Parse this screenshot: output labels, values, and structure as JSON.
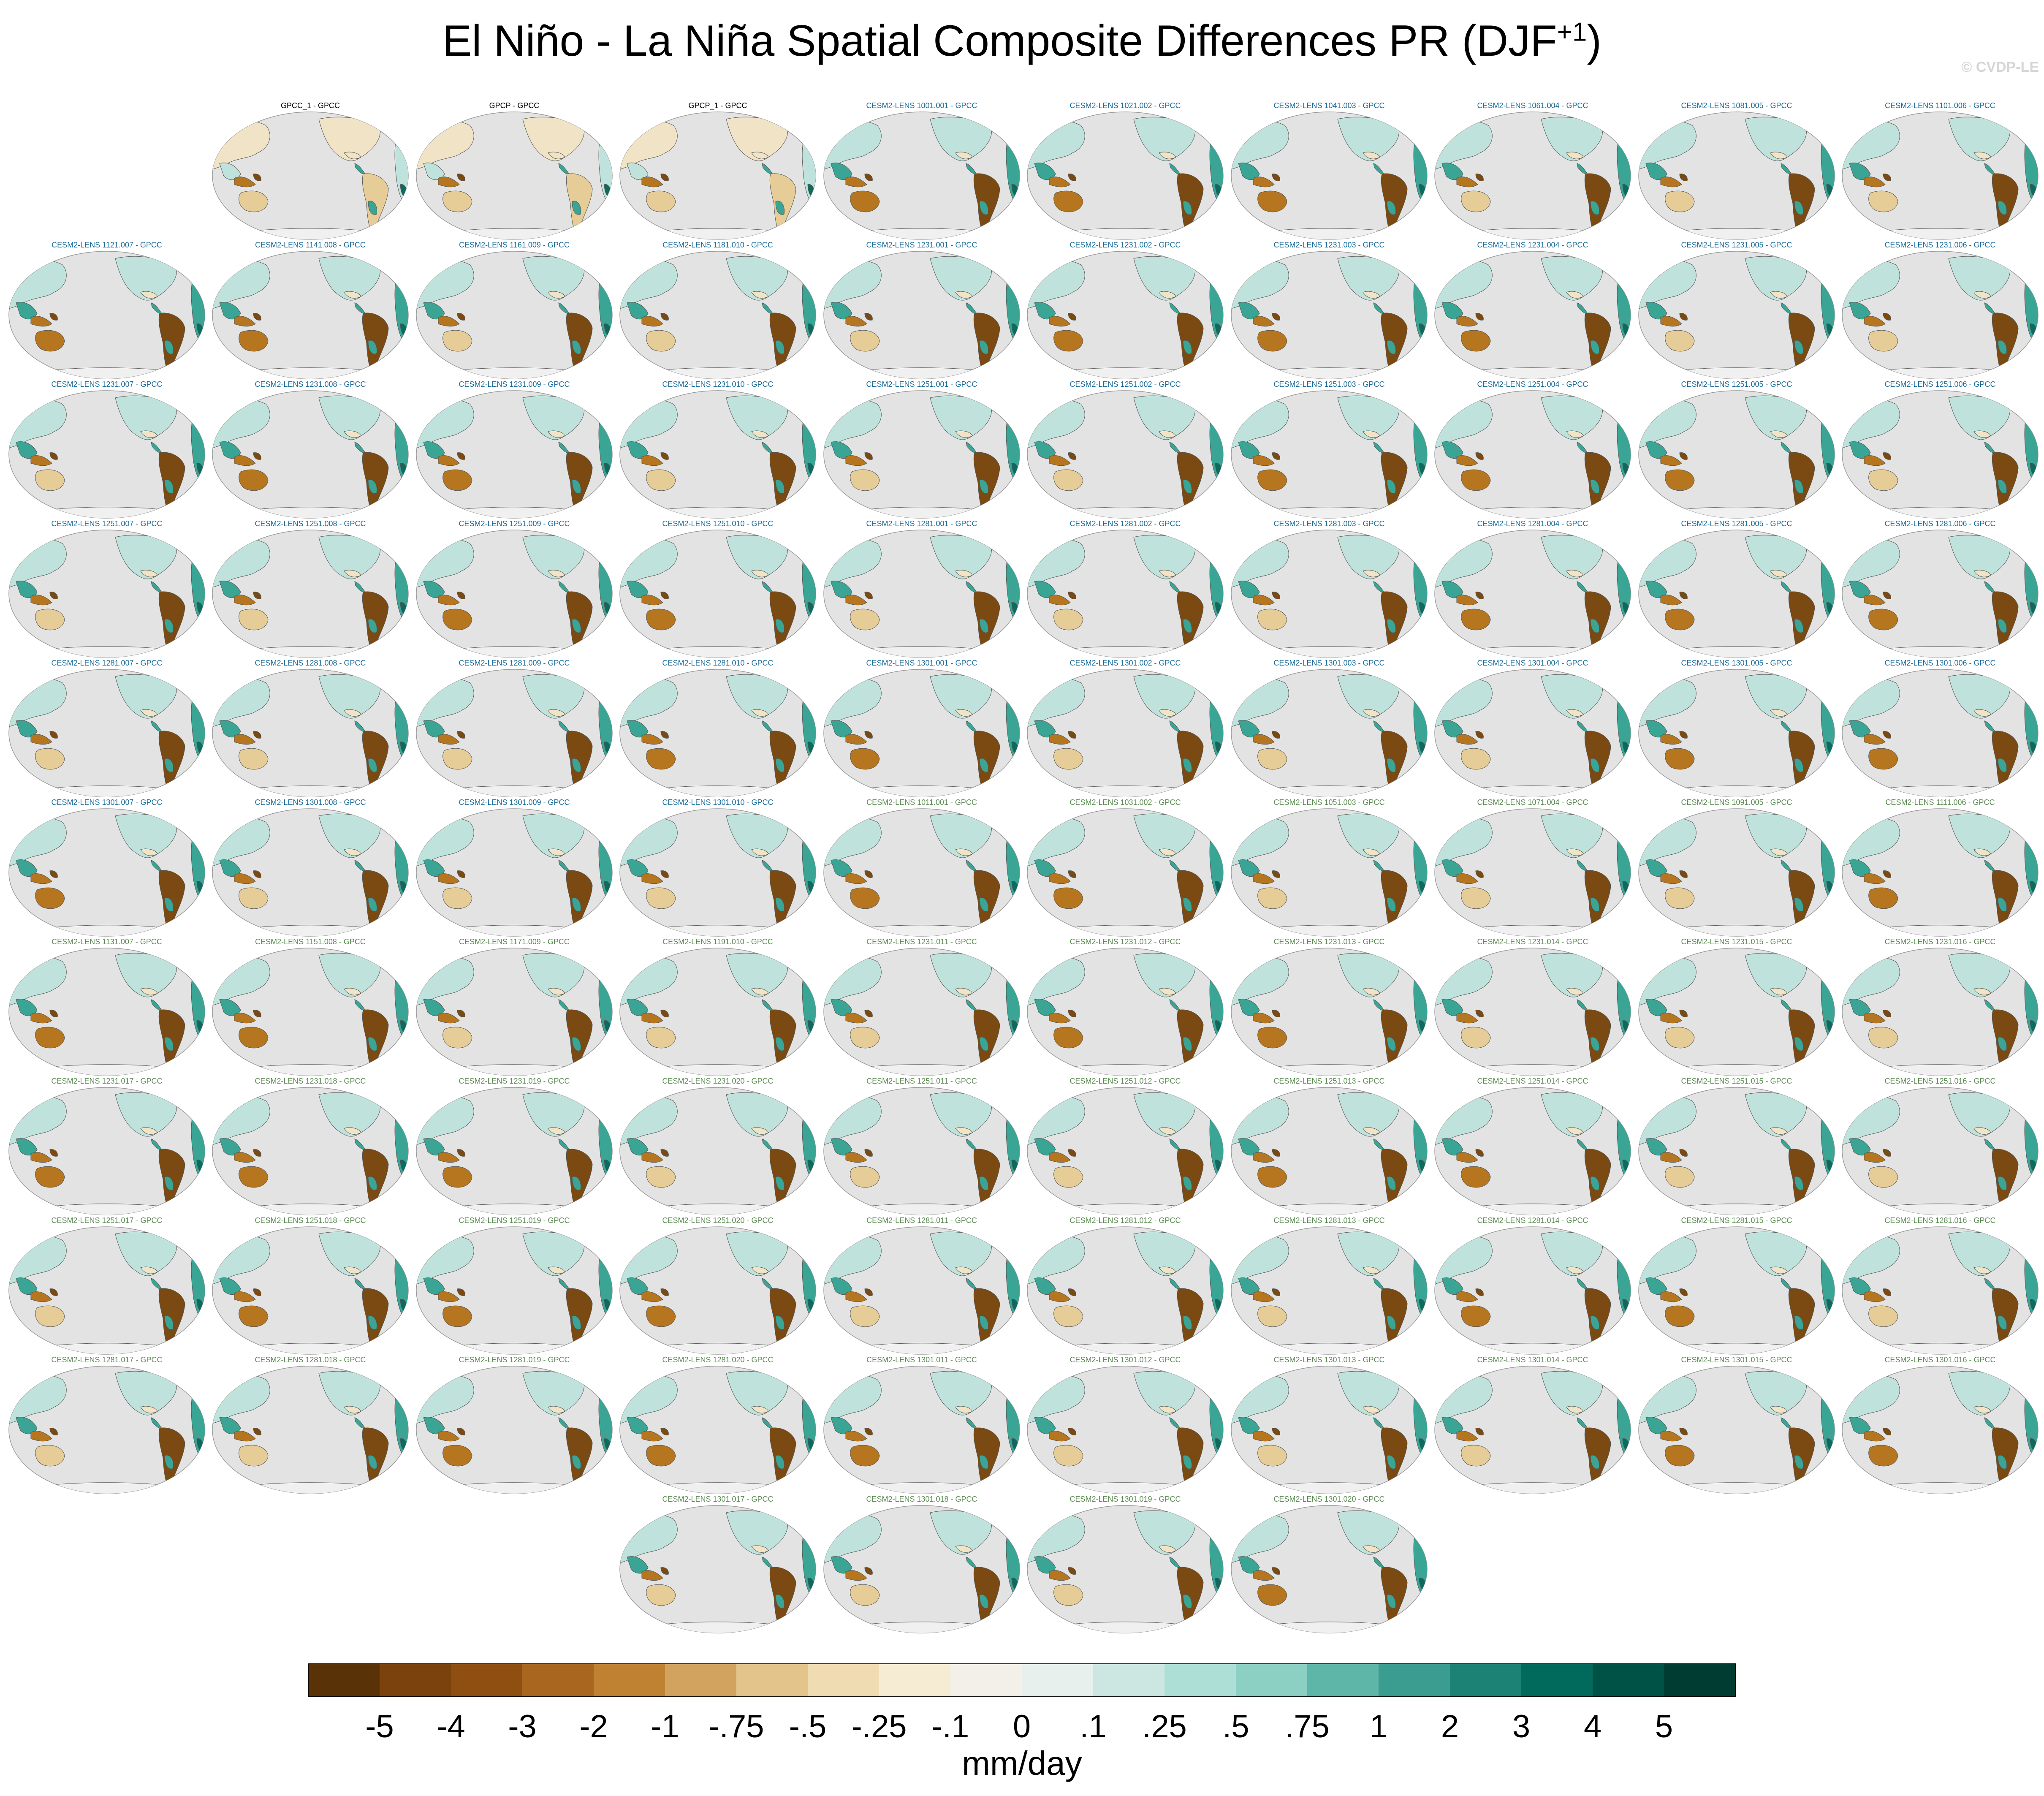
{
  "title": "El Niño - La Niña Spatial Composite Differences PR (DJF",
  "title_sup": "+1",
  "title_close": ")",
  "watermark": "© CVDP-LE",
  "panels": [
    {
      "label": "GPCC_1 - GPCC",
      "kind": "obs"
    },
    {
      "label": "GPCP - GPCC",
      "kind": "obs"
    },
    {
      "label": "GPCP_1 - GPCC",
      "kind": "obs"
    },
    {
      "label": "CESM2-LENS 1001.001 - GPCC",
      "kind": "a"
    },
    {
      "label": "CESM2-LENS 1021.002 - GPCC",
      "kind": "a"
    },
    {
      "label": "CESM2-LENS 1041.003 - GPCC",
      "kind": "a"
    },
    {
      "label": "CESM2-LENS 1061.004 - GPCC",
      "kind": "a"
    },
    {
      "label": "CESM2-LENS 1081.005 - GPCC",
      "kind": "a"
    },
    {
      "label": "CESM2-LENS 1101.006 - GPCC",
      "kind": "a"
    },
    {
      "label": "CESM2-LENS 1121.007 - GPCC",
      "kind": "a"
    },
    {
      "label": "CESM2-LENS 1141.008 - GPCC",
      "kind": "a"
    },
    {
      "label": "CESM2-LENS 1161.009 - GPCC",
      "kind": "a"
    },
    {
      "label": "CESM2-LENS 1181.010 - GPCC",
      "kind": "a"
    },
    {
      "label": "CESM2-LENS 1231.001 - GPCC",
      "kind": "a"
    },
    {
      "label": "CESM2-LENS 1231.002 - GPCC",
      "kind": "a"
    },
    {
      "label": "CESM2-LENS 1231.003 - GPCC",
      "kind": "a"
    },
    {
      "label": "CESM2-LENS 1231.004 - GPCC",
      "kind": "a"
    },
    {
      "label": "CESM2-LENS 1231.005 - GPCC",
      "kind": "a"
    },
    {
      "label": "CESM2-LENS 1231.006 - GPCC",
      "kind": "a"
    },
    {
      "label": "CESM2-LENS 1231.007 - GPCC",
      "kind": "a"
    },
    {
      "label": "CESM2-LENS 1231.008 - GPCC",
      "kind": "a"
    },
    {
      "label": "CESM2-LENS 1231.009 - GPCC",
      "kind": "a"
    },
    {
      "label": "CESM2-LENS 1231.010 - GPCC",
      "kind": "a"
    },
    {
      "label": "CESM2-LENS 1251.001 - GPCC",
      "kind": "a"
    },
    {
      "label": "CESM2-LENS 1251.002 - GPCC",
      "kind": "a"
    },
    {
      "label": "CESM2-LENS 1251.003 - GPCC",
      "kind": "a"
    },
    {
      "label": "CESM2-LENS 1251.004 - GPCC",
      "kind": "a"
    },
    {
      "label": "CESM2-LENS 1251.005 - GPCC",
      "kind": "a"
    },
    {
      "label": "CESM2-LENS 1251.006 - GPCC",
      "kind": "a"
    },
    {
      "label": "CESM2-LENS 1251.007 - GPCC",
      "kind": "a"
    },
    {
      "label": "CESM2-LENS 1251.008 - GPCC",
      "kind": "a"
    },
    {
      "label": "CESM2-LENS 1251.009 - GPCC",
      "kind": "a"
    },
    {
      "label": "CESM2-LENS 1251.010 - GPCC",
      "kind": "a"
    },
    {
      "label": "CESM2-LENS 1281.001 - GPCC",
      "kind": "a"
    },
    {
      "label": "CESM2-LENS 1281.002 - GPCC",
      "kind": "a"
    },
    {
      "label": "CESM2-LENS 1281.003 - GPCC",
      "kind": "a"
    },
    {
      "label": "CESM2-LENS 1281.004 - GPCC",
      "kind": "a"
    },
    {
      "label": "CESM2-LENS 1281.005 - GPCC",
      "kind": "a"
    },
    {
      "label": "CESM2-LENS 1281.006 - GPCC",
      "kind": "a"
    },
    {
      "label": "CESM2-LENS 1281.007 - GPCC",
      "kind": "a"
    },
    {
      "label": "CESM2-LENS 1281.008 - GPCC",
      "kind": "a"
    },
    {
      "label": "CESM2-LENS 1281.009 - GPCC",
      "kind": "a"
    },
    {
      "label": "CESM2-LENS 1281.010 - GPCC",
      "kind": "a"
    },
    {
      "label": "CESM2-LENS 1301.001 - GPCC",
      "kind": "a"
    },
    {
      "label": "CESM2-LENS 1301.002 - GPCC",
      "kind": "a"
    },
    {
      "label": "CESM2-LENS 1301.003 - GPCC",
      "kind": "a"
    },
    {
      "label": "CESM2-LENS 1301.004 - GPCC",
      "kind": "a"
    },
    {
      "label": "CESM2-LENS 1301.005 - GPCC",
      "kind": "a"
    },
    {
      "label": "CESM2-LENS 1301.006 - GPCC",
      "kind": "a"
    },
    {
      "label": "CESM2-LENS 1301.007 - GPCC",
      "kind": "a"
    },
    {
      "label": "CESM2-LENS 1301.008 - GPCC",
      "kind": "a"
    },
    {
      "label": "CESM2-LENS 1301.009 - GPCC",
      "kind": "a"
    },
    {
      "label": "CESM2-LENS 1301.010 - GPCC",
      "kind": "a"
    },
    {
      "label": "CESM2-LENS 1011.001 - GPCC",
      "kind": "b"
    },
    {
      "label": "CESM2-LENS 1031.002 - GPCC",
      "kind": "b"
    },
    {
      "label": "CESM2-LENS 1051.003 - GPCC",
      "kind": "b"
    },
    {
      "label": "CESM2-LENS 1071.004 - GPCC",
      "kind": "b"
    },
    {
      "label": "CESM2-LENS 1091.005 - GPCC",
      "kind": "b"
    },
    {
      "label": "CESM2-LENS 1111.006 - GPCC",
      "kind": "b"
    },
    {
      "label": "CESM2-LENS 1131.007 - GPCC",
      "kind": "b"
    },
    {
      "label": "CESM2-LENS 1151.008 - GPCC",
      "kind": "b"
    },
    {
      "label": "CESM2-LENS 1171.009 - GPCC",
      "kind": "b"
    },
    {
      "label": "CESM2-LENS 1191.010 - GPCC",
      "kind": "b"
    },
    {
      "label": "CESM2-LENS 1231.011 - GPCC",
      "kind": "b"
    },
    {
      "label": "CESM2-LENS 1231.012 - GPCC",
      "kind": "b"
    },
    {
      "label": "CESM2-LENS 1231.013 - GPCC",
      "kind": "b"
    },
    {
      "label": "CESM2-LENS 1231.014 - GPCC",
      "kind": "b"
    },
    {
      "label": "CESM2-LENS 1231.015 - GPCC",
      "kind": "b"
    },
    {
      "label": "CESM2-LENS 1231.016 - GPCC",
      "kind": "b"
    },
    {
      "label": "CESM2-LENS 1231.017 - GPCC",
      "kind": "b"
    },
    {
      "label": "CESM2-LENS 1231.018 - GPCC",
      "kind": "b"
    },
    {
      "label": "CESM2-LENS 1231.019 - GPCC",
      "kind": "b"
    },
    {
      "label": "CESM2-LENS 1231.020 - GPCC",
      "kind": "b"
    },
    {
      "label": "CESM2-LENS 1251.011 - GPCC",
      "kind": "b"
    },
    {
      "label": "CESM2-LENS 1251.012 - GPCC",
      "kind": "b"
    },
    {
      "label": "CESM2-LENS 1251.013 - GPCC",
      "kind": "b"
    },
    {
      "label": "CESM2-LENS 1251.014 - GPCC",
      "kind": "b"
    },
    {
      "label": "CESM2-LENS 1251.015 - GPCC",
      "kind": "b"
    },
    {
      "label": "CESM2-LENS 1251.016 - GPCC",
      "kind": "b"
    },
    {
      "label": "CESM2-LENS 1251.017 - GPCC",
      "kind": "b"
    },
    {
      "label": "CESM2-LENS 1251.018 - GPCC",
      "kind": "b"
    },
    {
      "label": "CESM2-LENS 1251.019 - GPCC",
      "kind": "b"
    },
    {
      "label": "CESM2-LENS 1251.020 - GPCC",
      "kind": "b"
    },
    {
      "label": "CESM2-LENS 1281.011 - GPCC",
      "kind": "b"
    },
    {
      "label": "CESM2-LENS 1281.012 - GPCC",
      "kind": "b"
    },
    {
      "label": "CESM2-LENS 1281.013 - GPCC",
      "kind": "b"
    },
    {
      "label": "CESM2-LENS 1281.014 - GPCC",
      "kind": "b"
    },
    {
      "label": "CESM2-LENS 1281.015 - GPCC",
      "kind": "b"
    },
    {
      "label": "CESM2-LENS 1281.016 - GPCC",
      "kind": "b"
    },
    {
      "label": "CESM2-LENS 1281.017 - GPCC",
      "kind": "b"
    },
    {
      "label": "CESM2-LENS 1281.018 - GPCC",
      "kind": "b"
    },
    {
      "label": "CESM2-LENS 1281.019 - GPCC",
      "kind": "b"
    },
    {
      "label": "CESM2-LENS 1281.020 - GPCC",
      "kind": "b"
    },
    {
      "label": "CESM2-LENS 1301.011 - GPCC",
      "kind": "b"
    },
    {
      "label": "CESM2-LENS 1301.012 - GPCC",
      "kind": "b"
    },
    {
      "label": "CESM2-LENS 1301.013 - GPCC",
      "kind": "b"
    },
    {
      "label": "CESM2-LENS 1301.014 - GPCC",
      "kind": "b"
    },
    {
      "label": "CESM2-LENS 1301.015 - GPCC",
      "kind": "b"
    },
    {
      "label": "CESM2-LENS 1301.016 - GPCC",
      "kind": "b"
    },
    {
      "label": "CESM2-LENS 1301.017 - GPCC",
      "kind": "b"
    },
    {
      "label": "CESM2-LENS 1301.018 - GPCC",
      "kind": "b"
    },
    {
      "label": "CESM2-LENS 1301.019 - GPCC",
      "kind": "b"
    },
    {
      "label": "CESM2-LENS 1301.020 - GPCC",
      "kind": "b"
    }
  ],
  "label_colors": {
    "obs": "#000000",
    "a": "#1a6b9a",
    "b": "#5b8a52"
  },
  "map_colors": {
    "ocean": "#e3e3e3",
    "coast": "#555555",
    "dry": "#b5761f",
    "drydark": "#7a4a12",
    "drylight": "#e6cc96",
    "wet": "#3aa595",
    "wetlight": "#bfe3dc",
    "wetdark": "#0c6b5e",
    "pale": "#f1e4c6"
  },
  "colorbar": {
    "units": "mm/day",
    "colors": [
      "#5a3208",
      "#7b420d",
      "#8f4f10",
      "#a8661e",
      "#bf8233",
      "#d2a35e",
      "#e3c48a",
      "#efdcb2",
      "#f5ecd3",
      "#f3f0ea",
      "#e8f0ee",
      "#cce7e2",
      "#aedfd6",
      "#8bd0c3",
      "#5eb6a8",
      "#3a9d90",
      "#1c8276",
      "#026a5d",
      "#015246",
      "#013c32"
    ],
    "ticks": [
      "-5",
      "-4",
      "-3",
      "-2",
      "-1",
      "-.75",
      "-.5",
      "-.25",
      "-.1",
      "0",
      ".1",
      ".25",
      ".5",
      ".75",
      "1",
      "2",
      "3",
      "4",
      "5"
    ]
  }
}
